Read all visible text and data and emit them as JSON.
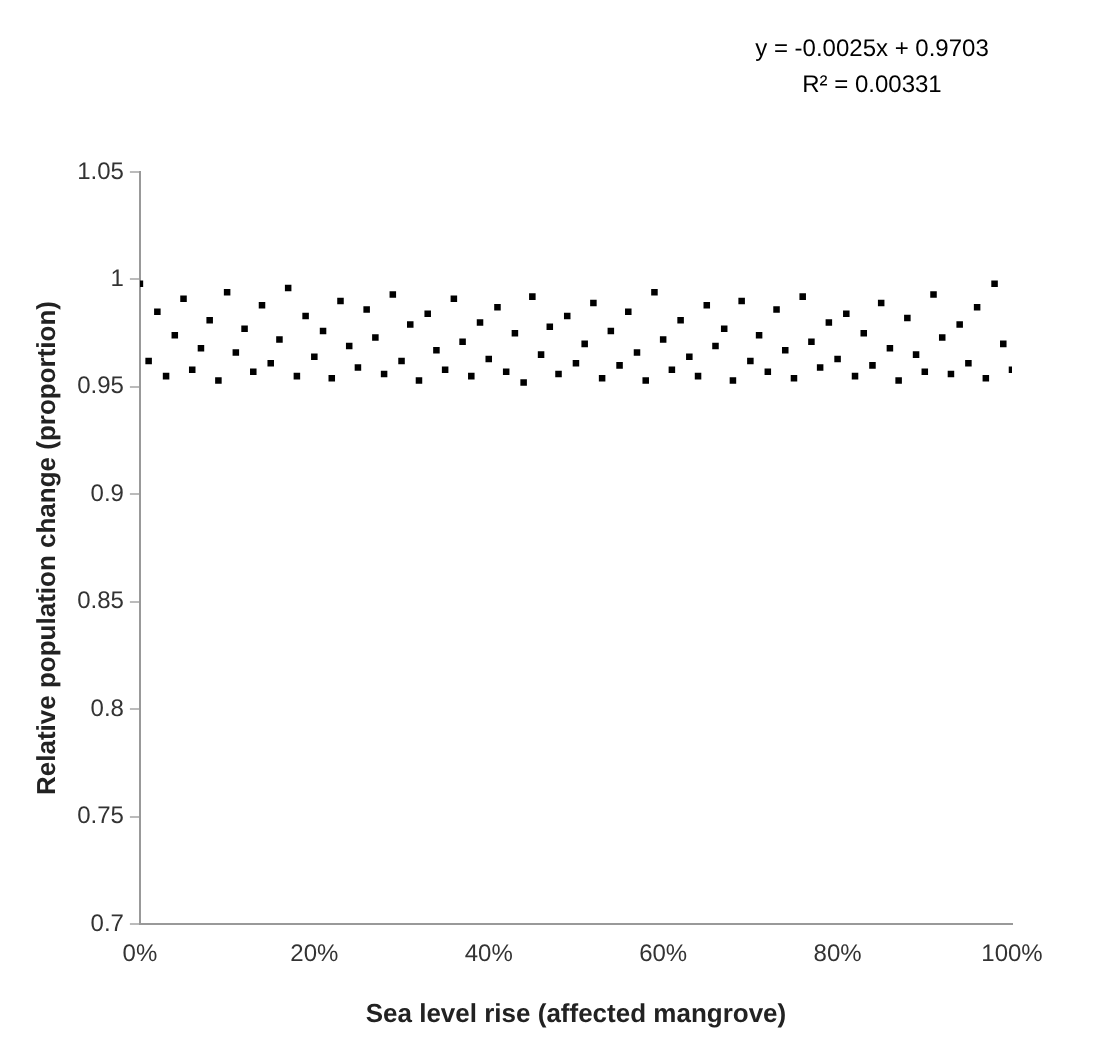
{
  "chart_data": {
    "type": "scatter",
    "xlabel": "Sea level rise (affected mangrove)",
    "ylabel": "Relative population change (proportion)",
    "annotations": [
      "y = -0.0025x + 0.9703",
      "R² = 0.00331"
    ],
    "x": [
      0,
      0.01,
      0.02,
      0.03,
      0.04,
      0.05,
      0.06,
      0.07,
      0.08,
      0.09,
      0.1,
      0.11,
      0.12,
      0.13,
      0.14,
      0.15,
      0.16,
      0.17,
      0.18,
      0.19,
      0.2,
      0.21,
      0.22,
      0.23,
      0.24,
      0.25,
      0.26,
      0.27,
      0.28,
      0.29,
      0.3,
      0.31,
      0.32,
      0.33,
      0.34,
      0.35,
      0.36,
      0.37,
      0.38,
      0.39,
      0.4,
      0.41,
      0.42,
      0.43,
      0.44,
      0.45,
      0.46,
      0.47,
      0.48,
      0.49,
      0.5,
      0.51,
      0.52,
      0.53,
      0.54,
      0.55,
      0.56,
      0.57,
      0.58,
      0.59,
      0.6,
      0.61,
      0.62,
      0.63,
      0.64,
      0.65,
      0.66,
      0.67,
      0.68,
      0.69,
      0.7,
      0.71,
      0.72,
      0.73,
      0.74,
      0.75,
      0.76,
      0.77,
      0.78,
      0.79,
      0.8,
      0.81,
      0.82,
      0.83,
      0.84,
      0.85,
      0.86,
      0.87,
      0.88,
      0.89,
      0.9,
      0.91,
      0.92,
      0.93,
      0.94,
      0.95,
      0.96,
      0.97,
      0.98,
      0.99,
      1
    ],
    "series": [
      {
        "color": "#000000",
        "values": [
          0.998,
          0.962,
          0.985,
          0.955,
          0.974,
          0.991,
          0.958,
          0.968,
          0.981,
          0.953,
          0.994,
          0.966,
          0.977,
          0.957,
          0.988,
          0.961,
          0.972,
          0.996,
          0.955,
          0.983,
          0.964,
          0.976,
          0.954,
          0.99,
          0.969,
          0.959,
          0.986,
          0.973,
          0.956,
          0.993,
          0.962,
          0.979,
          0.953,
          0.984,
          0.967,
          0.958,
          0.991,
          0.971,
          0.955,
          0.98,
          0.963,
          0.987,
          0.957,
          0.975,
          0.952,
          0.992,
          0.965,
          0.978,
          0.956,
          0.983,
          0.961,
          0.97,
          0.989,
          0.954,
          0.976,
          0.96,
          0.985,
          0.966,
          0.953,
          0.994,
          0.972,
          0.958,
          0.981,
          0.964,
          0.955,
          0.988,
          0.969,
          0.977,
          0.953,
          0.99,
          0.962,
          0.974,
          0.957,
          0.986,
          0.967,
          0.954,
          0.992,
          0.971,
          0.959,
          0.98,
          0.963,
          0.984,
          0.955,
          0.975,
          0.96,
          0.989,
          0.968,
          0.953,
          0.982,
          0.965,
          0.957,
          0.993,
          0.973,
          0.956,
          0.979,
          0.961,
          0.987,
          0.954,
          0.998,
          0.97,
          0.958
        ]
      }
    ],
    "xlim": [
      0,
      1
    ],
    "xticks": [
      {
        "value": 0,
        "label": "0%"
      },
      {
        "value": 0.2,
        "label": "20%"
      },
      {
        "value": 0.4,
        "label": "40%"
      },
      {
        "value": 0.6,
        "label": "60%"
      },
      {
        "value": 0.8,
        "label": "80%"
      },
      {
        "value": 1,
        "label": "100%"
      }
    ],
    "ylim": [
      0.7,
      1.05
    ],
    "yticks": [
      0.7,
      0.75,
      0.8,
      0.85,
      0.9,
      0.95,
      1,
      1.05
    ],
    "grid": false,
    "legend": false,
    "marker": "square"
  }
}
